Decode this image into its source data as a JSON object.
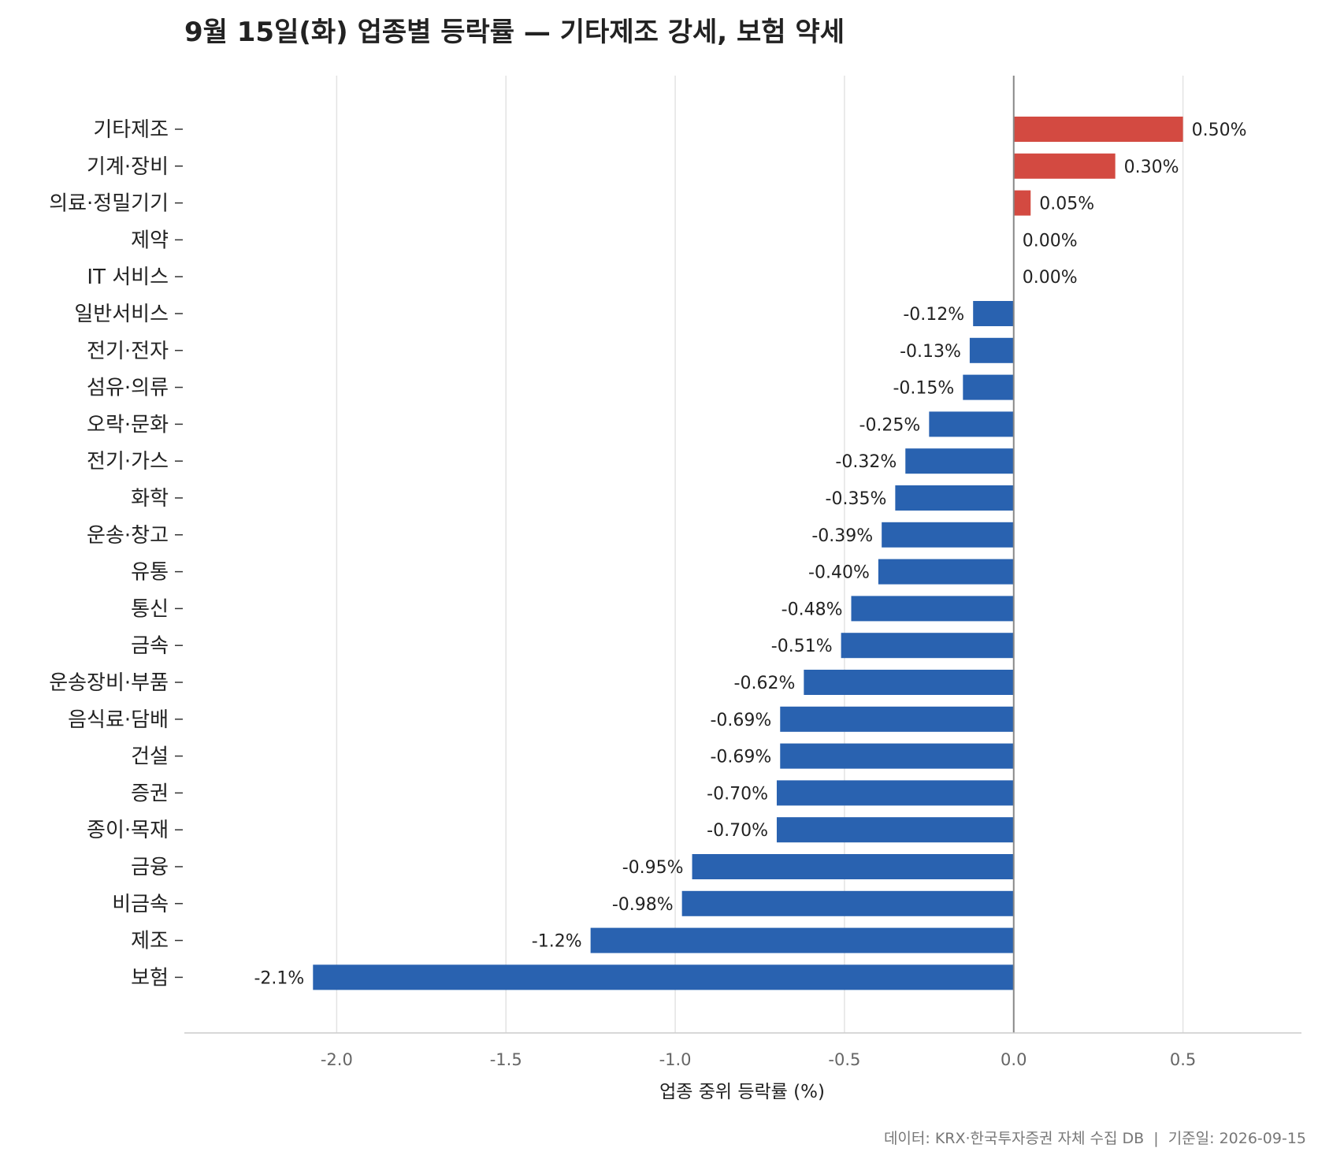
{
  "chart_data": {
    "type": "bar",
    "orientation": "horizontal",
    "title": "9월 15일(화) 업종별 등락률 — 기타제조 강세, 보험 약세",
    "xlabel": "업종 중위 등락률 (%)",
    "ylabel": "",
    "xlim": [
      -2.45,
      0.85
    ],
    "xticks": [
      -2.0,
      -1.5,
      -1.0,
      -0.5,
      0.0,
      0.5
    ],
    "xtick_labels": [
      "-2.0",
      "-1.5",
      "-1.0",
      "-0.5",
      "0.0",
      "0.5"
    ],
    "grid": "vertical",
    "categories": [
      "기타제조",
      "기계·장비",
      "의료·정밀기기",
      "제약",
      "IT 서비스",
      "일반서비스",
      "전기·전자",
      "섬유·의류",
      "오락·문화",
      "전기·가스",
      "화학",
      "운송·창고",
      "유통",
      "통신",
      "금속",
      "운송장비·부품",
      "음식료·담배",
      "건설",
      "증권",
      "종이·목재",
      "금융",
      "비금속",
      "제조",
      "보험"
    ],
    "values": [
      0.5,
      0.3,
      0.05,
      0.0,
      0.0,
      -0.12,
      -0.13,
      -0.15,
      -0.25,
      -0.32,
      -0.35,
      -0.39,
      -0.4,
      -0.48,
      -0.51,
      -0.62,
      -0.69,
      -0.69,
      -0.7,
      -0.7,
      -0.95,
      -0.98,
      -1.25,
      -2.07
    ],
    "value_labels": [
      "0.50%",
      "0.30%",
      "0.05%",
      "0.00%",
      "0.00%",
      "-0.12%",
      "-0.13%",
      "-0.15%",
      "-0.25%",
      "-0.32%",
      "-0.35%",
      "-0.39%",
      "-0.40%",
      "-0.48%",
      "-0.51%",
      "-0.62%",
      "-0.69%",
      "-0.69%",
      "-0.70%",
      "-0.70%",
      "-0.95%",
      "-0.98%",
      "-1.2%",
      "-2.1%"
    ],
    "colors": {
      "positive": "#d34a41",
      "negative": "#2962b0",
      "zero_line": "#888888",
      "grid": "#e3e3e3",
      "axis": "#cccccc"
    }
  },
  "footer": {
    "source": "데이터: KRX·한국투자증권 자체 수집 DB  |  기준일: 2026-09-15"
  }
}
